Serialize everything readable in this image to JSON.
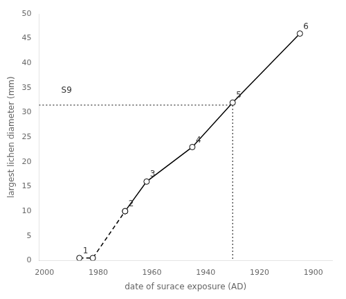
{
  "chart_data": {
    "type": "line",
    "xlabel": "date of surace exposure (AD)",
    "ylabel": "largest lichen diameter (mm)",
    "series": [
      {
        "x": [
          1987,
          1982,
          1970
        ],
        "values": [
          0.5,
          0.5,
          10
        ],
        "color": "#000000",
        "line_style": "dashed",
        "marker": "open_circle"
      },
      {
        "x": [
          1970,
          1962,
          1945,
          1930,
          1905
        ],
        "values": [
          10,
          16,
          23,
          32,
          46
        ],
        "color": "#000000",
        "line_style": "solid",
        "marker": "open_circle"
      },
      {
        "x": [
          2002,
          1930,
          1930
        ],
        "values": [
          31.5,
          31.5,
          0
        ],
        "color": "#000000",
        "line_style": "dotted",
        "marker": "none"
      }
    ],
    "annotations": [
      {
        "text": "1",
        "x": 1987,
        "y": 0.5
      },
      {
        "text": "2",
        "x": 1970,
        "y": 10
      },
      {
        "text": "3",
        "x": 1962,
        "y": 16
      },
      {
        "text": "4",
        "x": 1945,
        "y": 23
      },
      {
        "text": "5",
        "x": 1930,
        "y": 32
      },
      {
        "text": "6",
        "x": 1905,
        "y": 46
      },
      {
        "text": "S9",
        "x": 1995,
        "y": 33
      }
    ],
    "xlim": [
      2002,
      1893
    ],
    "ylim": [
      0,
      50
    ],
    "xticks": [
      2000,
      1980,
      1960,
      1940,
      1920,
      1900
    ],
    "yticks": [
      0,
      5,
      10,
      15,
      20,
      25,
      30,
      35,
      40,
      45,
      50
    ],
    "grid": false
  }
}
